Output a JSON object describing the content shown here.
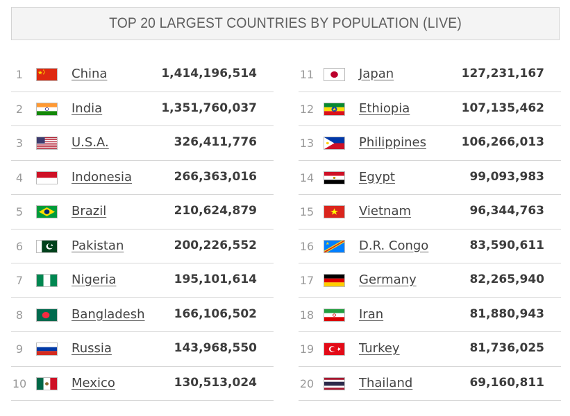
{
  "title": "TOP 20 LARGEST COUNTRIES BY POPULATION (LIVE)",
  "countries": [
    {
      "rank": "1",
      "name": "China",
      "population": "1,414,196,514",
      "flag": "china-flag"
    },
    {
      "rank": "2",
      "name": "India",
      "population": "1,351,760,037",
      "flag": "india-flag"
    },
    {
      "rank": "3",
      "name": "U.S.A.",
      "population": "326,411,776",
      "flag": "usa-flag"
    },
    {
      "rank": "4",
      "name": "Indonesia",
      "population": "266,363,016",
      "flag": "indonesia-flag"
    },
    {
      "rank": "5",
      "name": "Brazil",
      "population": "210,624,879",
      "flag": "brazil-flag"
    },
    {
      "rank": "6",
      "name": "Pakistan",
      "population": "200,226,552",
      "flag": "pakistan-flag"
    },
    {
      "rank": "7",
      "name": "Nigeria",
      "population": "195,101,614",
      "flag": "nigeria-flag"
    },
    {
      "rank": "8",
      "name": "Bangladesh",
      "population": "166,106,502",
      "flag": "bangladesh-flag"
    },
    {
      "rank": "9",
      "name": "Russia",
      "population": "143,968,550",
      "flag": "russia-flag"
    },
    {
      "rank": "10",
      "name": "Mexico",
      "population": "130,513,024",
      "flag": "mexico-flag"
    },
    {
      "rank": "11",
      "name": "Japan",
      "population": "127,231,167",
      "flag": "japan-flag"
    },
    {
      "rank": "12",
      "name": "Ethiopia",
      "population": "107,135,462",
      "flag": "ethiopia-flag"
    },
    {
      "rank": "13",
      "name": "Philippines",
      "population": "106,266,013",
      "flag": "philippines-flag"
    },
    {
      "rank": "14",
      "name": "Egypt",
      "population": "99,093,983",
      "flag": "egypt-flag"
    },
    {
      "rank": "15",
      "name": "Vietnam",
      "population": "96,344,763",
      "flag": "vietnam-flag"
    },
    {
      "rank": "16",
      "name": "D.R. Congo",
      "population": "83,590,611",
      "flag": "dr-congo-flag"
    },
    {
      "rank": "17",
      "name": "Germany",
      "population": "82,265,940",
      "flag": "germany-flag"
    },
    {
      "rank": "18",
      "name": "Iran",
      "population": "81,880,943",
      "flag": "iran-flag"
    },
    {
      "rank": "19",
      "name": "Turkey",
      "population": "81,736,025",
      "flag": "turkey-flag"
    },
    {
      "rank": "20",
      "name": "Thailand",
      "population": "69,160,811",
      "flag": "thailand-flag"
    }
  ]
}
